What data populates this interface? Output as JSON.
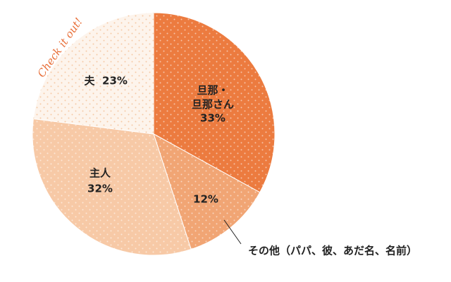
{
  "chart_data": {
    "type": "pie",
    "annotation": "Check it out!",
    "categories": [
      "旦那・旦那さん",
      "その他（パパ、彼、あだ名、名前）",
      "主人",
      "夫"
    ],
    "values": [
      33,
      12,
      32,
      23
    ],
    "value_labels": [
      "33%",
      "12%",
      "32%",
      "23%"
    ],
    "colors": [
      "#ec7b3f",
      "#f1a574",
      "#f7c9a6",
      "#fdf4ec"
    ]
  }
}
